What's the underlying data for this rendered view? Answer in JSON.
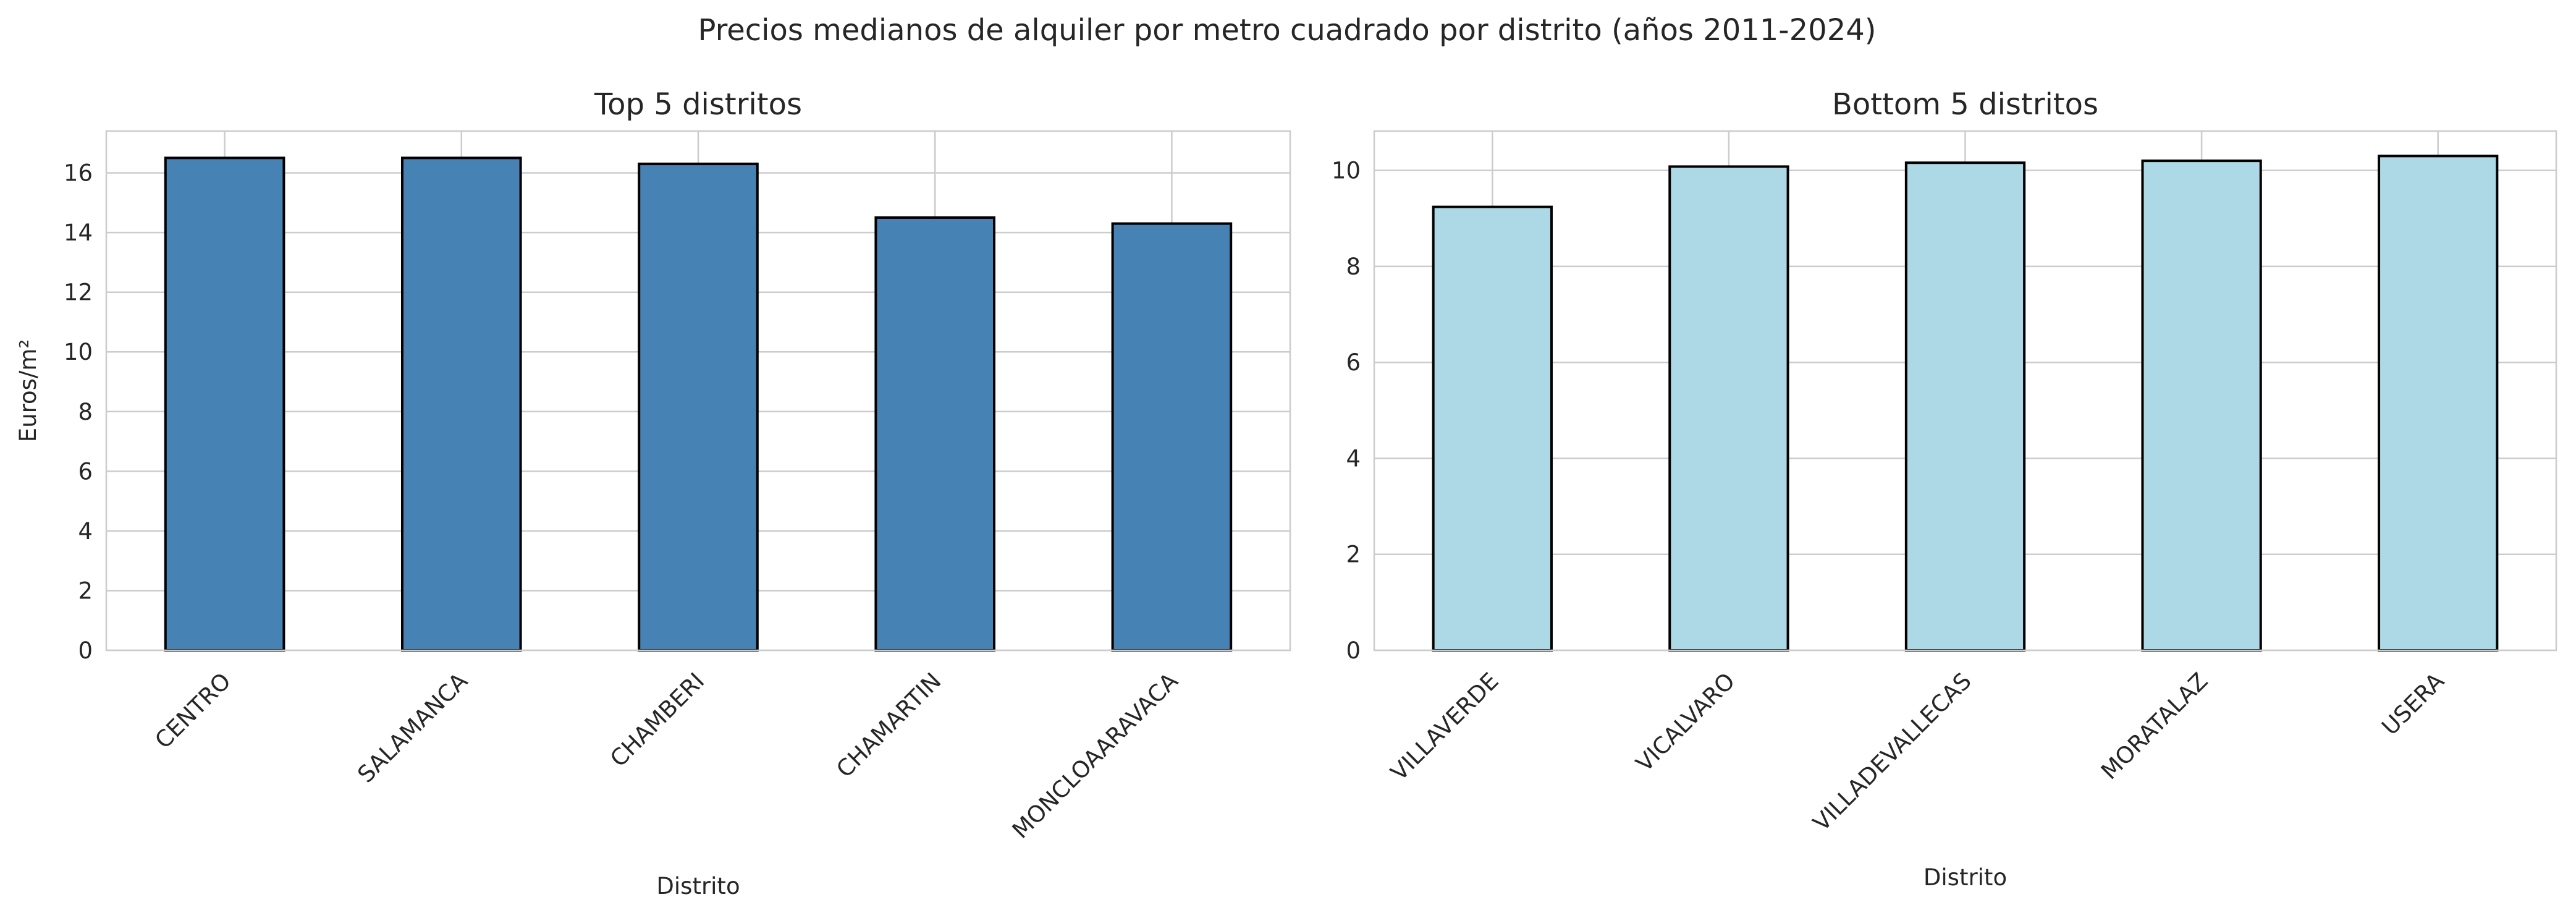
{
  "suptitle": "Precios medianos de alquiler por metro cuadrado por distrito (años 2011-2024)",
  "chart_data": [
    {
      "type": "bar",
      "title": "Top 5 distritos",
      "xlabel": "Distrito",
      "ylabel": "Euros/m²",
      "categories": [
        "CENTRO",
        "SALAMANCA",
        "CHAMBERI",
        "CHAMARTIN",
        "MONCLOAARAVACA"
      ],
      "values": [
        16.5,
        16.5,
        16.3,
        14.5,
        14.3
      ],
      "ylim": [
        0,
        17.4
      ],
      "yticks": [
        0,
        2,
        4,
        6,
        8,
        10,
        12,
        14,
        16
      ],
      "color": "#4682b4",
      "grid": true,
      "legend": null
    },
    {
      "type": "bar",
      "title": "Bottom 5 distritos",
      "xlabel": "Distrito",
      "ylabel": "",
      "categories": [
        "VILLAVERDE",
        "VICALVARO",
        "VILLADEVALLECAS",
        "MORATALAZ",
        "USERA"
      ],
      "values": [
        9.24,
        10.08,
        10.16,
        10.2,
        10.3
      ],
      "ylim": [
        0,
        10.82
      ],
      "yticks": [
        0,
        2,
        4,
        6,
        8,
        10
      ],
      "color": "#add8e6",
      "grid": true,
      "legend": null
    }
  ]
}
